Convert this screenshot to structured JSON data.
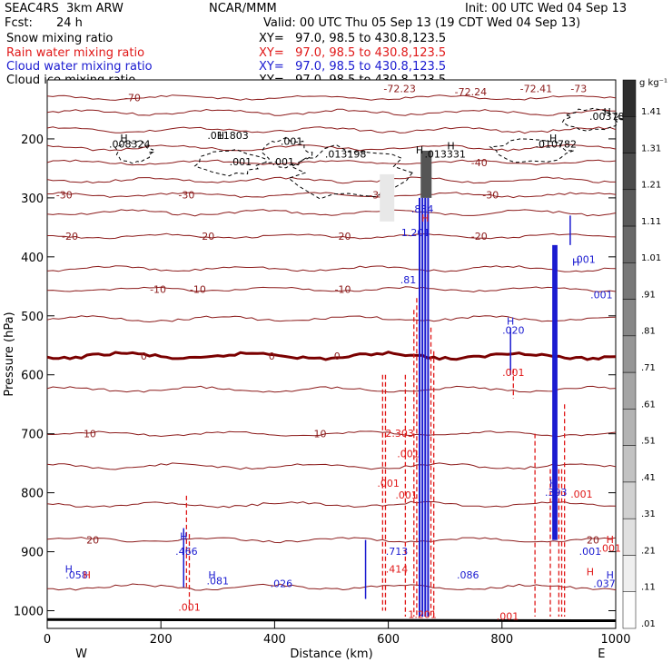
{
  "header": {
    "model": "SEAC4RS  3km ARW",
    "org": "NCAR/MMM",
    "init": "Init: 00 UTC Wed 04 Sep 13",
    "fcst_label": "Fcst:",
    "fcst_value": "24 h",
    "valid": "Valid: 00 UTC Thu 05 Sep 13 (19 CDT Wed 04 Sep 13)",
    "fields": [
      {
        "label": "Snow mixing ratio",
        "xy": "XY=   97.0, 98.5 to 430.8,123.5",
        "color": "#000000"
      },
      {
        "label": "Rain water mixing ratio",
        "xy": "XY=   97.0, 98.5 to 430.8,123.5",
        "color": "#e01818"
      },
      {
        "label": "Cloud water mixing ratio",
        "xy": "XY=   97.0, 98.5 to 430.8,123.5",
        "color": "#1a1ad0"
      },
      {
        "label": "Cloud ice mixing ratio",
        "xy": "XY=   97.0, 98.5 to 430.8,123.5",
        "color": "#000000"
      }
    ]
  },
  "chart_data": {
    "type": "contour-cross-section",
    "xlabel": "Distance (km)",
    "ylabel": "Pressure (hPa)",
    "xlim": [
      0,
      1000
    ],
    "ylim": [
      1030,
      100
    ],
    "x_ticks": [
      0,
      200,
      400,
      600,
      800,
      1000
    ],
    "y_ticks": [
      200,
      300,
      400,
      500,
      600,
      700,
      800,
      900,
      1000
    ],
    "x_left_label": "W",
    "x_right_label": "E",
    "colorbar": {
      "unit": "g kg⁻¹",
      "levels": [
        1.41,
        1.31,
        1.21,
        1.11,
        1.01,
        0.91,
        0.81,
        0.71,
        0.61,
        0.51,
        0.41,
        0.31,
        0.21,
        0.11,
        0.01
      ],
      "labels": [
        "1.41",
        "1.31",
        "1.21",
        "1.11",
        "1.01",
        ".91",
        ".81",
        ".71",
        ".61",
        ".51",
        ".41",
        ".31",
        ".21",
        ".11",
        ".01"
      ]
    },
    "temperature_isotherms": [
      {
        "value": -70,
        "pressure": 130,
        "label": "-70"
      },
      {
        "value": -72.23,
        "pressure": 115,
        "label": "-72.23"
      },
      {
        "value": -72.24,
        "pressure": 120,
        "label": "-72.24"
      },
      {
        "value": -72.41,
        "pressure": 115,
        "label": "-72.41"
      },
      {
        "value": -73,
        "pressure": 115,
        "label": "-73"
      },
      {
        "value": -40,
        "pressure": 240,
        "label": "-40"
      },
      {
        "value": -30,
        "pressure": 295,
        "label": "-30"
      },
      {
        "value": -20,
        "pressure": 365,
        "label": "-20"
      },
      {
        "value": -10,
        "pressure": 455,
        "label": "-10"
      },
      {
        "value": 0,
        "pressure": 568,
        "label": "0"
      },
      {
        "value": 10,
        "pressure": 700,
        "label": "10"
      },
      {
        "value": 20,
        "pressure": 880,
        "label": "20"
      }
    ],
    "extra_isobaric_lines": [
      155,
      185,
      215,
      270,
      325,
      420,
      505,
      625,
      755,
      820,
      960
    ],
    "labels": {
      "snow": [
        {
          "x": 145,
          "p": 215,
          "text": ".008324"
        },
        {
          "x": 318,
          "p": 200,
          "text": ".011803"
        },
        {
          "x": 430,
          "p": 210,
          "text": ".001"
        },
        {
          "x": 340,
          "p": 245,
          "text": ".001"
        },
        {
          "x": 415,
          "p": 245,
          "text": ".001"
        },
        {
          "x": 525,
          "p": 232,
          "text": ".013198"
        },
        {
          "x": 700,
          "p": 232,
          "text": ".013331"
        },
        {
          "x": 895,
          "p": 215,
          "text": ".010782"
        },
        {
          "x": 990,
          "p": 168,
          "text": ".003784"
        }
      ],
      "cloud_water": [
        {
          "x": 660,
          "p": 325,
          "text": ".834"
        },
        {
          "x": 648,
          "p": 365,
          "text": "1.201"
        },
        {
          "x": 635,
          "p": 445,
          "text": ".81"
        },
        {
          "x": 820,
          "p": 530,
          "text": ".020"
        },
        {
          "x": 945,
          "p": 410,
          "text": ".001"
        },
        {
          "x": 975,
          "p": 470,
          "text": ".001"
        },
        {
          "x": 245,
          "p": 905,
          "text": ".466"
        },
        {
          "x": 52,
          "p": 945,
          "text": ".058"
        },
        {
          "x": 300,
          "p": 955,
          "text": ".081"
        },
        {
          "x": 412,
          "p": 960,
          "text": ".026"
        },
        {
          "x": 615,
          "p": 905,
          "text": ".713"
        },
        {
          "x": 895,
          "p": 805,
          "text": ".393"
        },
        {
          "x": 955,
          "p": 905,
          "text": ".001"
        },
        {
          "x": 740,
          "p": 945,
          "text": ".086"
        },
        {
          "x": 980,
          "p": 960,
          "text": ".037"
        }
      ],
      "rain": [
        {
          "x": 620,
          "p": 705,
          "text": "2.303"
        },
        {
          "x": 635,
          "p": 740,
          "text": ".001"
        },
        {
          "x": 600,
          "p": 790,
          "text": ".001"
        },
        {
          "x": 820,
          "p": 602,
          "text": ".001"
        },
        {
          "x": 940,
          "p": 808,
          "text": ".001"
        },
        {
          "x": 250,
          "p": 1000,
          "text": ".001"
        },
        {
          "x": 660,
          "p": 1012,
          "text": "1.201"
        },
        {
          "x": 632,
          "p": 810,
          "text": ".001"
        },
        {
          "x": 615,
          "p": 935,
          "text": ".414"
        },
        {
          "x": 810,
          "p": 1015,
          "text": ".001"
        },
        {
          "x": 990,
          "p": 900,
          "text": ".001"
        }
      ],
      "H_markers": [
        {
          "x": 135,
          "p": 205,
          "color": "#000"
        },
        {
          "x": 305,
          "p": 200,
          "color": "#000"
        },
        {
          "x": 710,
          "p": 218,
          "color": "#000"
        },
        {
          "x": 890,
          "p": 205,
          "color": "#000"
        },
        {
          "x": 985,
          "p": 160,
          "color": "#000"
        },
        {
          "x": 655,
          "p": 225,
          "color": "#000"
        },
        {
          "x": 240,
          "p": 880,
          "color": "#1a1ad0"
        },
        {
          "x": 38,
          "p": 935,
          "color": "#1a1ad0"
        },
        {
          "x": 290,
          "p": 945,
          "color": "#1a1ad0"
        },
        {
          "x": 930,
          "p": 415,
          "color": "#1a1ad0"
        },
        {
          "x": 815,
          "p": 515,
          "color": "#1a1ad0"
        },
        {
          "x": 890,
          "p": 790,
          "color": "#1a1ad0"
        },
        {
          "x": 990,
          "p": 945,
          "color": "#1a1ad0"
        },
        {
          "x": 665,
          "p": 340,
          "color": "#e01818"
        },
        {
          "x": 990,
          "p": 885,
          "color": "#e01818"
        },
        {
          "x": 70,
          "p": 945,
          "color": "#e01818"
        },
        {
          "x": 955,
          "p": 940,
          "color": "#e01818"
        }
      ]
    }
  }
}
